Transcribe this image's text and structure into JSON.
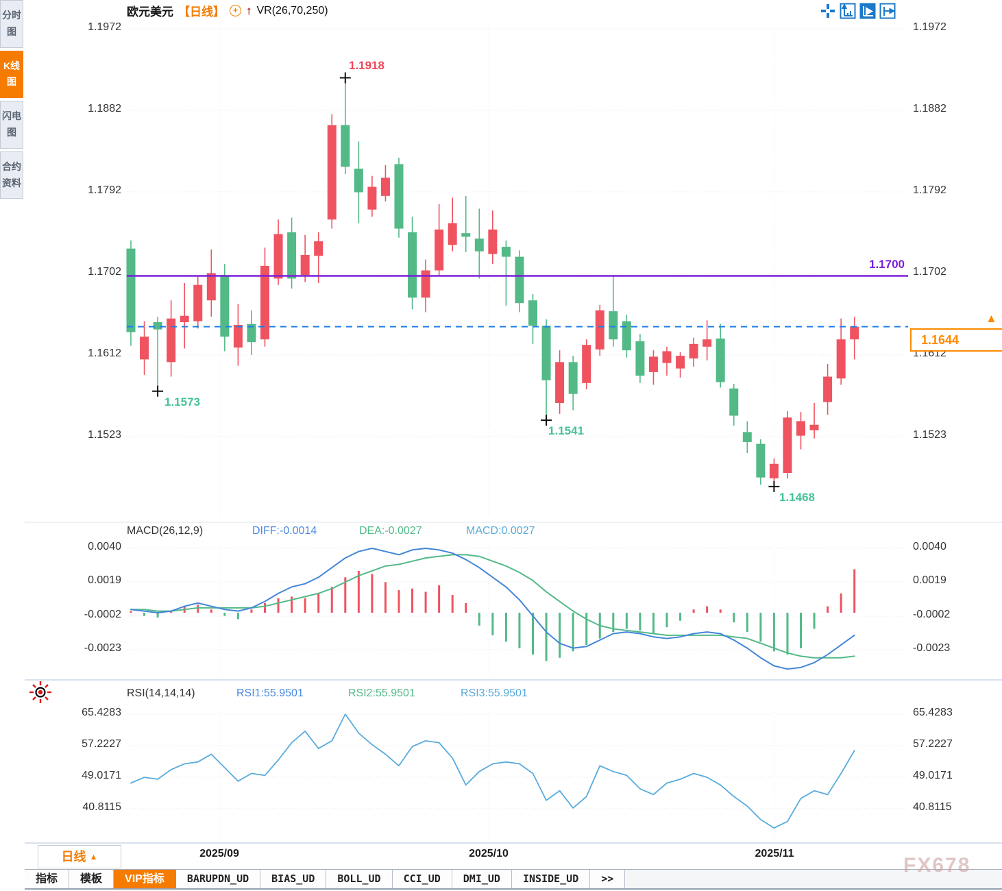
{
  "header": {
    "symbol": "欧元美元",
    "timeframe_label": "【日线】",
    "vr_label": "VR(26,70,250)"
  },
  "icons": {
    "oplus": "+",
    "arrow_up": "↑",
    "triangle_up": "▲"
  },
  "toolbar": {
    "icons": [
      "layout-grid-icon",
      "axis-zoom-icon",
      "axis-play-icon",
      "axis-pan-icon"
    ],
    "active_index": 2
  },
  "sidebar": {
    "items": [
      {
        "label": "分时图",
        "active": false
      },
      {
        "label": "K线图",
        "active": true
      },
      {
        "label": "闪电图",
        "active": false
      },
      {
        "label": "合约资料",
        "active": false
      }
    ]
  },
  "annotations": {
    "high": "1.1918",
    "low1": "1.1573",
    "low2": "1.1541",
    "low3": "1.1468",
    "hline_label": "1.1700",
    "last_price": "1.1644"
  },
  "macd": {
    "title": "MACD(26,12,9)",
    "diff_label": "DIFF:-0.0014",
    "dea_label": "DEA:-0.0027",
    "macd_label": "MACD:0.0027",
    "axis_labels": [
      "0.0040",
      "0.0019",
      "-0.0002",
      "-0.0023"
    ]
  },
  "rsi": {
    "title": "RSI(14,14,14)",
    "rsi1_label": "RSI1:55.9501",
    "rsi2_label": "RSI2:55.9501",
    "rsi3_label": "RSI3:55.9501",
    "axis_labels": [
      "65.4283",
      "57.2227",
      "49.0171",
      "40.8115"
    ]
  },
  "footer": {
    "period_label": "日线",
    "period_arrow": "▲",
    "tabs": [
      {
        "label": "指标",
        "active": false,
        "mono": false
      },
      {
        "label": "模板",
        "active": false,
        "mono": false
      },
      {
        "label": "VIP指标",
        "active": true,
        "mono": false
      },
      {
        "label": "BARUPDN_UD",
        "active": false,
        "mono": true
      },
      {
        "label": "BIAS_UD",
        "active": false,
        "mono": true
      },
      {
        "label": "BOLL_UD",
        "active": false,
        "mono": true
      },
      {
        "label": "CCI_UD",
        "active": false,
        "mono": true
      },
      {
        "label": "DMI_UD",
        "active": false,
        "mono": true
      },
      {
        "label": "INSIDE_UD",
        "active": false,
        "mono": true
      },
      {
        "label": ">>",
        "active": false,
        "mono": true
      }
    ]
  },
  "watermark": "FX678",
  "colors": {
    "up": "#ef5360",
    "down": "#53b987",
    "hline": "#7b1fd9",
    "last_price_line": "#1e7fe8",
    "accent": "#f57c00",
    "diff_line": "#4286d8",
    "dea_line": "#53b987",
    "rsi_line": "#58abdc"
  },
  "chart_data": [
    {
      "type": "candlestick",
      "title": "欧元美元 日线",
      "y_ticks": [
        1.1972,
        1.1882,
        1.1792,
        1.1702,
        1.1612,
        1.1523
      ],
      "y_tick_labels": [
        "1.1972",
        "1.1882",
        "1.1792",
        "1.1702",
        "1.1612",
        "1.1523"
      ],
      "x_labels": [
        "2025/09",
        "2025/10",
        "2025/11"
      ],
      "grid": true,
      "support_line": 1.17,
      "last_price": 1.1644,
      "markers": [
        {
          "index": 16,
          "price": 1.1918,
          "kind": "high"
        },
        {
          "index": 2,
          "price": 1.1573,
          "kind": "low"
        },
        {
          "index": 31,
          "price": 1.1541,
          "kind": "low"
        },
        {
          "index": 48,
          "price": 1.1468,
          "kind": "low"
        }
      ],
      "ohlc": [
        [
          1.173,
          1.1739,
          1.1623,
          1.1638
        ],
        [
          1.1608,
          1.165,
          1.1591,
          1.1633
        ],
        [
          1.1649,
          1.1655,
          1.1573,
          1.1641
        ],
        [
          1.1605,
          1.1673,
          1.1589,
          1.1653
        ],
        [
          1.1649,
          1.1692,
          1.162,
          1.1656
        ],
        [
          1.165,
          1.1699,
          1.1642,
          1.169
        ],
        [
          1.1673,
          1.1729,
          1.1655,
          1.1703
        ],
        [
          1.1701,
          1.1713,
          1.1617,
          1.1633
        ],
        [
          1.1621,
          1.1669,
          1.1601,
          1.1646
        ],
        [
          1.1647,
          1.1662,
          1.1613,
          1.1627
        ],
        [
          1.163,
          1.1731,
          1.1622,
          1.1711
        ],
        [
          1.1697,
          1.1762,
          1.169,
          1.1746
        ],
        [
          1.1748,
          1.1764,
          1.1686,
          1.1697
        ],
        [
          1.1701,
          1.1745,
          1.1693,
          1.1723
        ],
        [
          1.1722,
          1.1748,
          1.1692,
          1.1738
        ],
        [
          1.1762,
          1.1878,
          1.1752,
          1.1866
        ],
        [
          1.1866,
          1.1918,
          1.1812,
          1.182
        ],
        [
          1.1818,
          1.1848,
          1.1758,
          1.1792
        ],
        [
          1.1773,
          1.181,
          1.1765,
          1.1798
        ],
        [
          1.1788,
          1.1822,
          1.1782,
          1.1808
        ],
        [
          1.1823,
          1.183,
          1.1742,
          1.1752
        ],
        [
          1.1748,
          1.1765,
          1.1663,
          1.1676
        ],
        [
          1.1676,
          1.1718,
          1.166,
          1.1706
        ],
        [
          1.1706,
          1.1779,
          1.17,
          1.1751
        ],
        [
          1.1734,
          1.1786,
          1.1727,
          1.1758
        ],
        [
          1.1747,
          1.1788,
          1.1726,
          1.1743
        ],
        [
          1.1741,
          1.1774,
          1.1697,
          1.1727
        ],
        [
          1.1724,
          1.1772,
          1.1713,
          1.1751
        ],
        [
          1.1732,
          1.1739,
          1.1667,
          1.1721
        ],
        [
          1.1721,
          1.1728,
          1.166,
          1.167
        ],
        [
          1.1673,
          1.168,
          1.1625,
          1.1645
        ],
        [
          1.1645,
          1.1652,
          1.1541,
          1.1585
        ],
        [
          1.156,
          1.1618,
          1.1548,
          1.1605
        ],
        [
          1.1605,
          1.1612,
          1.1552,
          1.157
        ],
        [
          1.1582,
          1.163,
          1.1575,
          1.1624
        ],
        [
          1.1619,
          1.1668,
          1.1612,
          1.1662
        ],
        [
          1.1661,
          1.1701,
          1.1622,
          1.163
        ],
        [
          1.165,
          1.1657,
          1.161,
          1.1618
        ],
        [
          1.1628,
          1.1636,
          1.1582,
          1.159
        ],
        [
          1.1594,
          1.1618,
          1.158,
          1.1611
        ],
        [
          1.1604,
          1.1622,
          1.159,
          1.1617
        ],
        [
          1.1598,
          1.1616,
          1.1588,
          1.1612
        ],
        [
          1.1609,
          1.1632,
          1.16,
          1.1625
        ],
        [
          1.1622,
          1.1651,
          1.1607,
          1.163
        ],
        [
          1.1631,
          1.1647,
          1.1577,
          1.1583
        ],
        [
          1.1576,
          1.1581,
          1.1535,
          1.1546
        ],
        [
          1.1528,
          1.154,
          1.1505,
          1.1517
        ],
        [
          1.1515,
          1.152,
          1.147,
          1.1478
        ],
        [
          1.1477,
          1.1499,
          1.1468,
          1.1493
        ],
        [
          1.1483,
          1.1551,
          1.1477,
          1.1544
        ],
        [
          1.1524,
          1.155,
          1.1509,
          1.154
        ],
        [
          1.153,
          1.156,
          1.1521,
          1.1536
        ],
        [
          1.1561,
          1.1603,
          1.1547,
          1.1589
        ],
        [
          1.1587,
          1.1653,
          1.158,
          1.163
        ],
        [
          1.163,
          1.1655,
          1.1608,
          1.1644
        ]
      ]
    },
    {
      "type": "bar",
      "title": "MACD(26,12,9)",
      "y_ticks": [
        0.004,
        0.0019,
        -0.0002,
        -0.0023
      ],
      "series": [
        {
          "name": "MACD histogram",
          "values": [
            0.0001,
            -0.0002,
            -0.0003,
            0.0001,
            0.0004,
            0.0005,
            0.0002,
            -0.0002,
            -0.0004,
            0.0002,
            0.0006,
            0.0009,
            0.001,
            0.0009,
            0.0012,
            0.0016,
            0.0022,
            0.0026,
            0.0024,
            0.0019,
            0.0014,
            0.0015,
            0.0013,
            0.0017,
            0.0011,
            0.0006,
            -0.0008,
            -0.0014,
            -0.0018,
            -0.0022,
            -0.0026,
            -0.003,
            -0.0028,
            -0.0024,
            -0.002,
            -0.0016,
            -0.0012,
            -0.001,
            -0.0011,
            -0.0013,
            -0.0009,
            -0.0005,
            0.0002,
            0.0004,
            0.0002,
            -0.0006,
            -0.0012,
            -0.0018,
            -0.0024,
            -0.0026,
            -0.0022,
            -0.001,
            0.0004,
            0.0012,
            0.0027
          ]
        },
        {
          "name": "DIFF",
          "values": [
            0.0002,
            0.0001,
            0.0,
            0.0001,
            0.0004,
            0.0006,
            0.0004,
            0.0002,
            0.0001,
            0.0003,
            0.0007,
            0.0012,
            0.0016,
            0.0018,
            0.0022,
            0.0028,
            0.0034,
            0.0038,
            0.004,
            0.0038,
            0.0036,
            0.0039,
            0.004,
            0.0039,
            0.0037,
            0.0033,
            0.0028,
            0.0022,
            0.0016,
            0.0008,
            -0.0002,
            -0.0012,
            -0.0019,
            -0.0022,
            -0.0021,
            -0.0017,
            -0.0013,
            -0.0012,
            -0.0013,
            -0.0015,
            -0.0016,
            -0.0015,
            -0.0013,
            -0.0012,
            -0.0013,
            -0.0017,
            -0.0022,
            -0.0028,
            -0.0033,
            -0.0035,
            -0.0034,
            -0.0031,
            -0.0026,
            -0.002,
            -0.0014
          ]
        },
        {
          "name": "DEA",
          "values": [
            0.0002,
            0.0002,
            0.0001,
            0.0001,
            0.0002,
            0.0003,
            0.0003,
            0.0003,
            0.0003,
            0.0003,
            0.0004,
            0.0006,
            0.0008,
            0.001,
            0.0012,
            0.0015,
            0.0019,
            0.0023,
            0.0026,
            0.0029,
            0.003,
            0.0032,
            0.0034,
            0.0035,
            0.0036,
            0.0036,
            0.0035,
            0.0032,
            0.0029,
            0.0025,
            0.002,
            0.0013,
            0.0007,
            0.0001,
            -0.0004,
            -0.0008,
            -0.001,
            -0.0011,
            -0.0012,
            -0.0013,
            -0.0014,
            -0.0014,
            -0.0014,
            -0.0014,
            -0.0014,
            -0.0015,
            -0.0016,
            -0.0019,
            -0.0022,
            -0.0025,
            -0.0027,
            -0.0028,
            -0.0028,
            -0.0028,
            -0.0027
          ]
        }
      ]
    },
    {
      "type": "line",
      "title": "RSI(14,14,14)",
      "y_ticks": [
        65.4283,
        57.2227,
        49.0171,
        40.8115
      ],
      "series": [
        {
          "name": "RSI",
          "values": [
            47.5,
            49.0,
            48.5,
            51.0,
            52.5,
            53.0,
            55.0,
            51.5,
            48.0,
            50.0,
            49.5,
            53.5,
            58.0,
            61.0,
            56.5,
            58.5,
            65.43,
            60.5,
            57.5,
            55.0,
            52.0,
            57.0,
            58.5,
            58.0,
            54.0,
            47.0,
            50.5,
            52.5,
            53.0,
            52.5,
            50.0,
            43.0,
            45.5,
            41.0,
            44.0,
            52.0,
            50.5,
            49.5,
            46.0,
            44.5,
            47.5,
            48.5,
            50.0,
            49.0,
            47.0,
            44.0,
            41.5,
            38.0,
            35.8,
            37.5,
            43.5,
            45.5,
            44.5,
            50.0,
            55.95
          ]
        }
      ]
    }
  ]
}
